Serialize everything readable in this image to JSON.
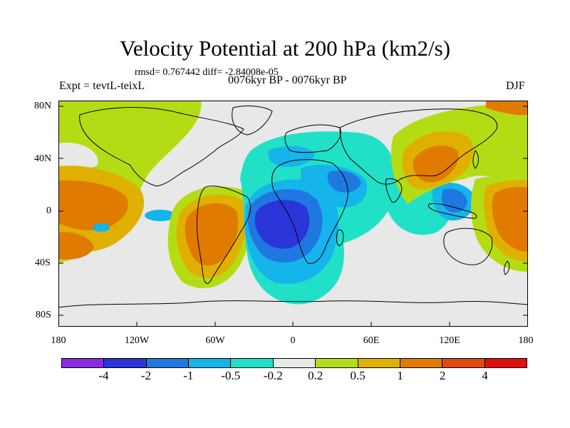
{
  "title": "Velocity Potential at 200 hPa (km2/s)",
  "stats": "rmsd= 0.767442 diff= -2.84008e-05",
  "experiment": "Expt = tevtL-teixL",
  "period": "0076kyr BP - 0076kyr BP",
  "season": "DJF",
  "lat_labels": [
    "80N",
    "40N",
    "0",
    "40S",
    "80S"
  ],
  "lon_labels": [
    "180",
    "120W",
    "60W",
    "0",
    "60E",
    "120E",
    "180"
  ],
  "colorbar": {
    "colors": [
      "#8a2be2",
      "#2a35d8",
      "#1e78e0",
      "#15b4ea",
      "#20e0c8",
      "#e8e8e8",
      "#b4dc14",
      "#e0b000",
      "#e07a00",
      "#e04a10",
      "#e01010"
    ],
    "labels": [
      "-4",
      "-2",
      "-1",
      "-0.5",
      "-0.2",
      "0.2",
      "0.5",
      "1",
      "2",
      "4"
    ]
  }
}
